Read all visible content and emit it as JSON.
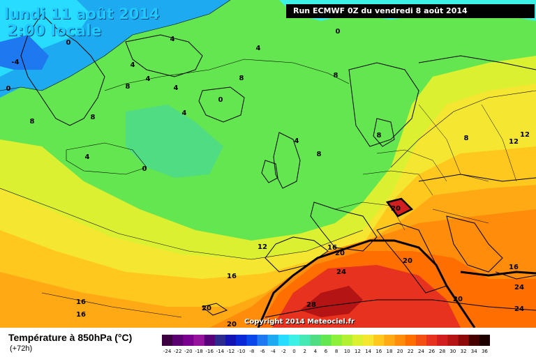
{
  "header": {
    "date": "lundi 11 août 2014",
    "time": "2:00 locale",
    "run": "Run ECMWF 0Z du vendredi 8 août 2014"
  },
  "copyright": "Copyright 2014 Meteociel.fr",
  "legend": {
    "title": "Température à 850hPa (°C)",
    "subtitle": "(+72h)",
    "ticks": [
      "-24",
      "-22",
      "-20",
      "-18",
      "-16",
      "-14",
      "-12",
      "-10",
      "-8",
      "-6",
      "-4",
      "-2",
      "0",
      "2",
      "4",
      "6",
      "8",
      "10",
      "12",
      "14",
      "16",
      "18",
      "20",
      "22",
      "24",
      "26",
      "28",
      "30",
      "32",
      "34",
      "36"
    ],
    "colors": [
      "#3c0040",
      "#5a0070",
      "#7a0090",
      "#96139e",
      "#58007a",
      "#2c2a8c",
      "#1414b4",
      "#0a28d6",
      "#0a46ea",
      "#1e78f0",
      "#1eaaf0",
      "#28dcff",
      "#3cf0e6",
      "#46e8b4",
      "#50dc82",
      "#64e650",
      "#8cf03c",
      "#b4f032",
      "#dcf032",
      "#f5e632",
      "#ffc81e",
      "#ffaa14",
      "#ff8c0a",
      "#ff6e00",
      "#f55014",
      "#e6321e",
      "#d21e1e",
      "#b41414",
      "#8c0a0a",
      "#460000",
      "#1e0000"
    ]
  },
  "map": {
    "isotherm_labels": [
      "0",
      "0",
      "-4",
      "0",
      "4",
      "4",
      "4",
      "4",
      "8",
      "8",
      "8",
      "4",
      "8",
      "0",
      "4",
      "8",
      "4",
      "0",
      "8",
      "4",
      "8",
      "12",
      "8",
      "12",
      "20",
      "16",
      "20",
      "20",
      "24",
      "16",
      "16",
      "24",
      "12",
      "20",
      "24",
      "28",
      "20",
      "16",
      "16",
      "20"
    ]
  }
}
